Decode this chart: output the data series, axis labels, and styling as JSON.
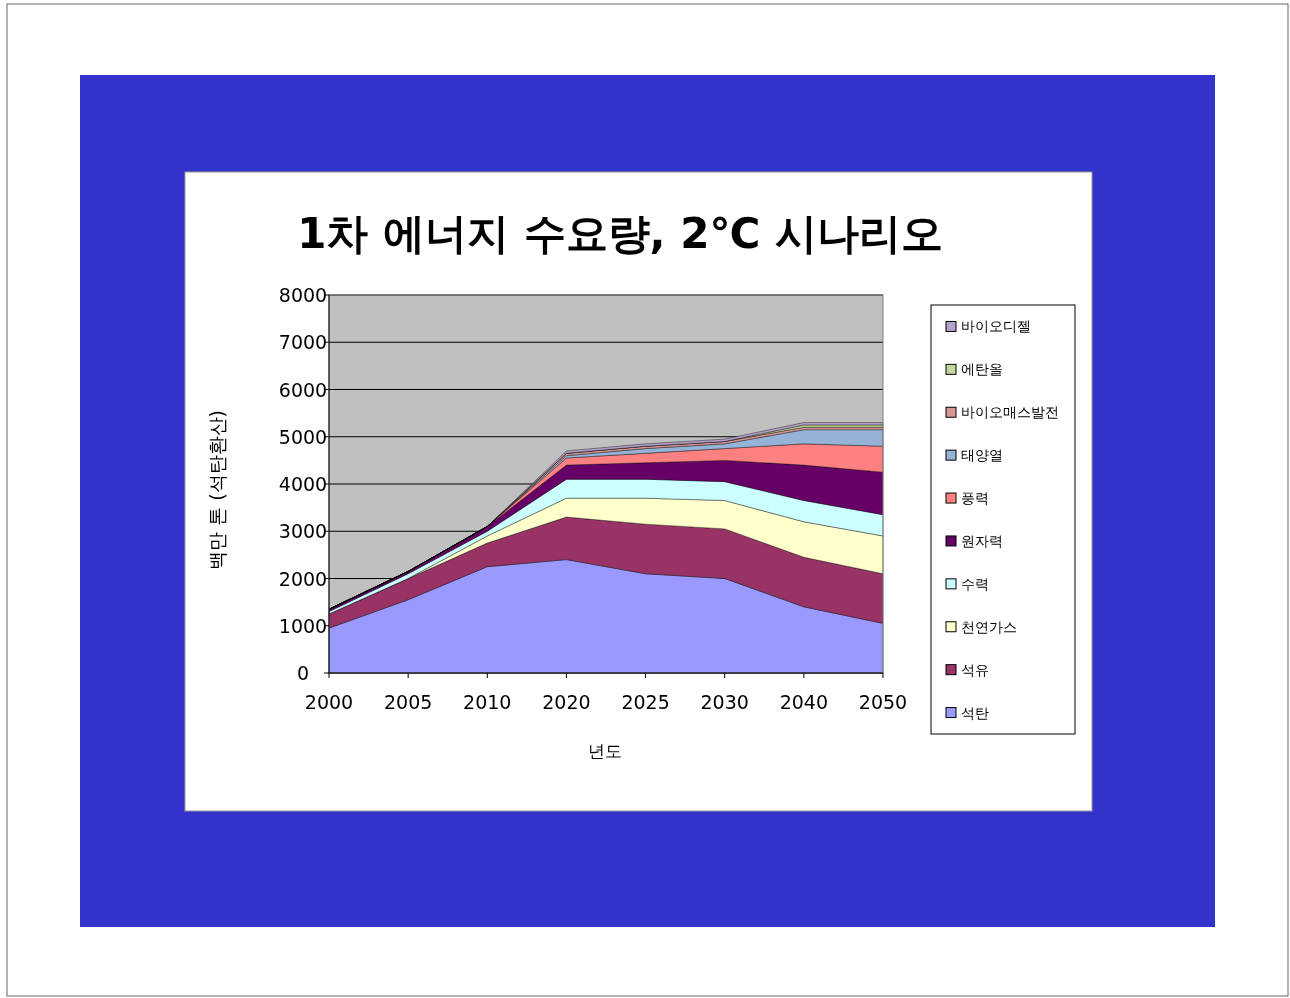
{
  "chart_data": {
    "type": "area",
    "title": "1차 에너지 수요량, 2℃ 시나리오",
    "xlabel": "년도",
    "ylabel": "백만 톤 (석탄환산)",
    "categories": [
      "2000",
      "2005",
      "2010",
      "2020",
      "2025",
      "2030",
      "2040",
      "2050"
    ],
    "stacked": true,
    "ylim": [
      0,
      8000
    ],
    "yticks": [
      0,
      1000,
      2000,
      3000,
      4000,
      5000,
      6000,
      7000,
      8000
    ],
    "grid": "y",
    "legend": "right",
    "series": [
      {
        "name": "석탄",
        "color": "#9999ff",
        "values": [
          950,
          1550,
          2250,
          2400,
          2100,
          2000,
          1400,
          1050
        ]
      },
      {
        "name": "석유",
        "color": "#993366",
        "values": [
          300,
          450,
          500,
          900,
          1050,
          1050,
          1050,
          1050
        ]
      },
      {
        "name": "천연가스",
        "color": "#ffffcc",
        "values": [
          0,
          0,
          150,
          400,
          550,
          600,
          750,
          800
        ]
      },
      {
        "name": "수력",
        "color": "#ccffff",
        "values": [
          50,
          100,
          100,
          400,
          400,
          400,
          450,
          450
        ]
      },
      {
        "name": "원자력",
        "color": "#660066",
        "values": [
          50,
          50,
          100,
          300,
          350,
          450,
          750,
          900
        ]
      },
      {
        "name": "풍력",
        "color": "#ff8080",
        "values": [
          0,
          0,
          0,
          150,
          200,
          250,
          450,
          550
        ]
      },
      {
        "name": "태양열",
        "color": "#95b3d7",
        "values": [
          0,
          0,
          0,
          50,
          100,
          100,
          300,
          350
        ]
      },
      {
        "name": "바이오매스발전",
        "color": "#d99694",
        "values": [
          0,
          0,
          0,
          50,
          50,
          50,
          50,
          50
        ]
      },
      {
        "name": "에탄올",
        "color": "#c3d69b",
        "values": [
          0,
          0,
          0,
          0,
          0,
          0,
          50,
          50
        ]
      },
      {
        "name": "바이오디젤",
        "color": "#b2a2c7",
        "values": [
          0,
          0,
          0,
          50,
          50,
          50,
          50,
          50
        ]
      }
    ]
  }
}
